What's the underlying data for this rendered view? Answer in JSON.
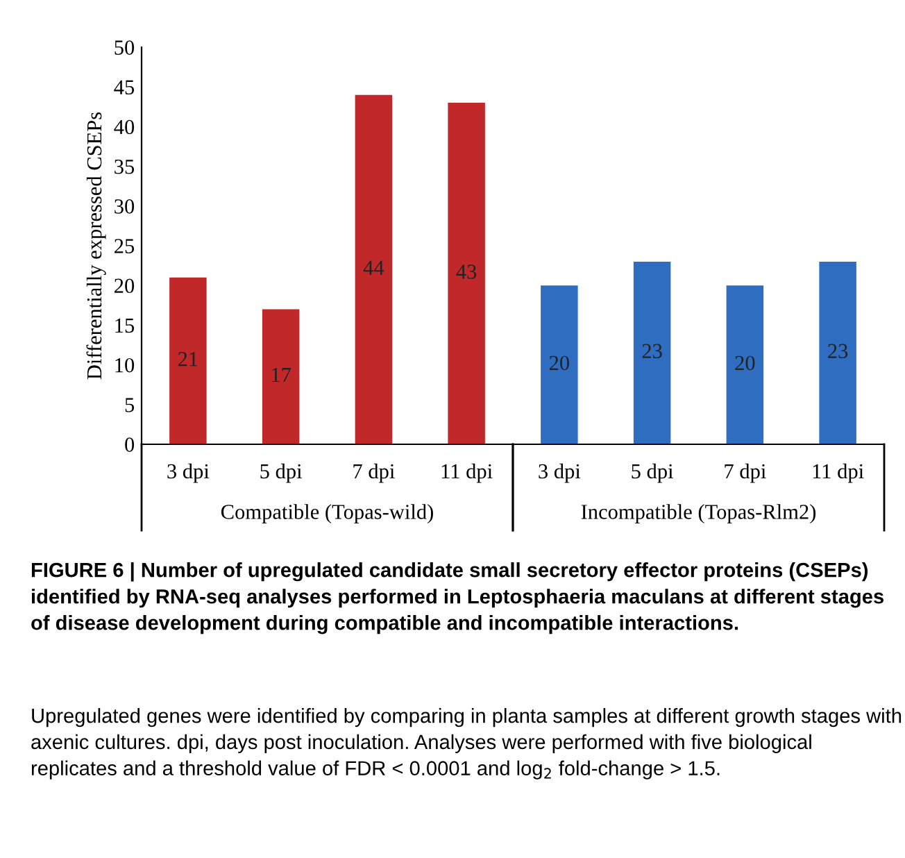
{
  "chart_data": {
    "type": "bar",
    "ylabel": "Differentially expressed CSEPs",
    "categories": [
      "3 dpi",
      "5 dpi",
      "7 dpi",
      "11 dpi",
      "3 dpi",
      "5 dpi",
      "7 dpi",
      "11 dpi"
    ],
    "values": [
      21,
      17,
      44,
      43,
      20,
      23,
      20,
      23
    ],
    "colors": [
      "#c0282a",
      "#c0282a",
      "#c0282a",
      "#c0282a",
      "#2e6dc0",
      "#2e6dc0",
      "#2e6dc0",
      "#2e6dc0"
    ],
    "ylim": [
      0,
      50
    ],
    "yticks": [
      0,
      5,
      10,
      15,
      20,
      25,
      30,
      35,
      40,
      45,
      50
    ],
    "data_labels": true,
    "grid": false,
    "annotations": [
      "Compatible (Topas-wild)",
      "Incompatible (Topas-Rlm2)",
      "FIGURE 6 | Number of upregulated candidate small secretory effector proteins (CSEPs) identified by RNA-seq analyses performed in Leptosphaeria maculans at different stages of disease development during compatible and incompatible interactions.",
      "Upregulated genes were identified by comparing in planta samples at different growth stages with axenic cultures. dpi, days post inoculation. Analyses were performed with five biological replicates and a threshold value of FDR < 0.0001 and log$_{2}$ fold-change > 1.5."
    ]
  }
}
